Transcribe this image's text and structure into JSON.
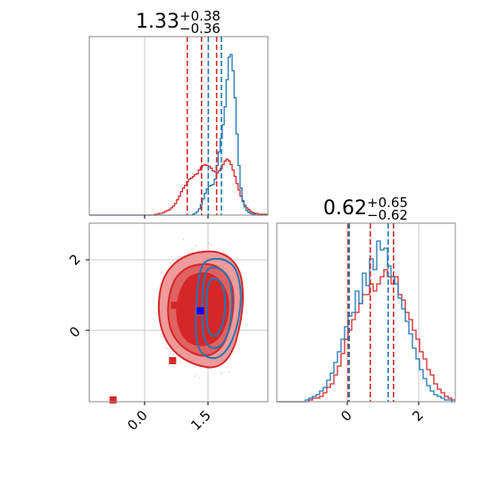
{
  "colors": {
    "red": "#d62728",
    "blue": "#1f77b4",
    "grid": "#c8c8c8",
    "frame": "#888888"
  },
  "chart_data": [
    {
      "type": "histogram",
      "panel": "top-left",
      "title": {
        "value": "1.33",
        "upper": "+0.38",
        "lower": "−0.36"
      },
      "xlim": [
        -1.5,
        3.0
      ],
      "vlines": {
        "red": [
          0.97,
          1.33,
          1.71
        ],
        "blue": [
          1.5,
          1.83
        ]
      },
      "series": [
        {
          "color": "red",
          "x_start": -1.5,
          "bin_width": 0.05,
          "values": [
            0,
            0,
            0,
            0,
            0,
            0,
            0,
            0,
            0,
            0,
            0,
            0,
            0,
            0,
            0,
            0,
            0,
            0,
            0,
            0,
            0,
            0,
            0,
            0,
            0,
            0,
            0,
            0,
            0,
            0,
            0,
            0,
            0,
            1,
            1,
            2,
            2,
            3,
            4,
            5,
            6,
            8,
            10,
            13,
            17,
            21,
            26,
            30,
            33,
            37,
            40,
            41,
            43,
            45,
            46,
            50,
            53,
            55,
            56,
            55,
            54,
            52,
            49,
            48,
            47,
            49,
            52,
            56,
            60,
            62,
            60,
            56,
            50,
            43,
            35,
            28,
            21,
            15,
            11,
            8,
            6,
            4,
            3,
            2,
            2,
            1,
            1,
            1,
            1,
            1,
            0,
            0
          ]
        },
        {
          "color": "blue",
          "x_start": -1.5,
          "bin_width": 0.05,
          "values": [
            0,
            0,
            0,
            0,
            0,
            0,
            0,
            0,
            0,
            0,
            0,
            0,
            0,
            0,
            0,
            0,
            0,
            0,
            0,
            0,
            0,
            0,
            0,
            0,
            0,
            0,
            0,
            0,
            0,
            0,
            0,
            0,
            0,
            0,
            0,
            0,
            0,
            0,
            0,
            0,
            0,
            0,
            0,
            0,
            0,
            0,
            0,
            0,
            0,
            0,
            0,
            0,
            1,
            2,
            4,
            7,
            12,
            18,
            24,
            29,
            32,
            33,
            34,
            40,
            55,
            70,
            85,
            100,
            120,
            150,
            175,
            178,
            160,
            130,
            90,
            55,
            30,
            16,
            9,
            5,
            3,
            2,
            1,
            1,
            0,
            0,
            0,
            0,
            0,
            0,
            0,
            0
          ]
        }
      ]
    },
    {
      "type": "contour",
      "panel": "bottom-left",
      "xlim": [
        -1.5,
        3.0
      ],
      "ylim": [
        -2.0,
        3.0
      ],
      "xticks": [
        "0.0",
        "1.5"
      ],
      "yticks": [
        "2",
        "0"
      ],
      "red_markers": [
        {
          "x": 0.65,
          "y": 0.7
        },
        {
          "x": 1.0,
          "y": 0.65
        },
        {
          "x": 0.6,
          "y": -0.85
        },
        {
          "x": -0.9,
          "y": -1.95
        }
      ],
      "blue_marker": {
        "x": 1.3,
        "y": 0.55
      }
    },
    {
      "type": "histogram",
      "panel": "bottom-right",
      "title": {
        "value": "0.62",
        "upper": "+0.65",
        "lower": "−0.62"
      },
      "xlim": [
        -2.0,
        3.0
      ],
      "xticks": [
        "0",
        "2"
      ],
      "vlines": {
        "red": [
          0.0,
          0.62,
          1.27
        ],
        "blue": [
          0.03,
          1.12
        ]
      },
      "series": [
        {
          "color": "red",
          "x_start": -2.0,
          "bin_width": 0.1,
          "values": [
            0,
            0,
            0,
            0,
            0,
            0,
            0,
            0,
            0,
            1,
            2,
            2,
            3,
            5,
            8,
            10,
            15,
            20,
            27,
            35,
            40,
            46,
            50,
            55,
            60,
            60,
            66,
            62,
            66,
            70,
            74,
            70,
            66,
            70,
            60,
            57,
            50,
            46,
            40,
            35,
            28,
            24,
            18,
            15,
            10,
            7,
            5,
            3,
            2,
            1
          ]
        },
        {
          "color": "blue",
          "x_start": -2.0,
          "bin_width": 0.1,
          "values": [
            0,
            0,
            0,
            0,
            0,
            0,
            0,
            0,
            1,
            2,
            3,
            4,
            6,
            8,
            12,
            16,
            22,
            28,
            35,
            42,
            48,
            50,
            62,
            55,
            72,
            65,
            80,
            74,
            90,
            85,
            86,
            76,
            70,
            66,
            58,
            52,
            45,
            38,
            30,
            24,
            18,
            13,
            9,
            6,
            4,
            3,
            2,
            1,
            1,
            0
          ]
        }
      ]
    }
  ]
}
